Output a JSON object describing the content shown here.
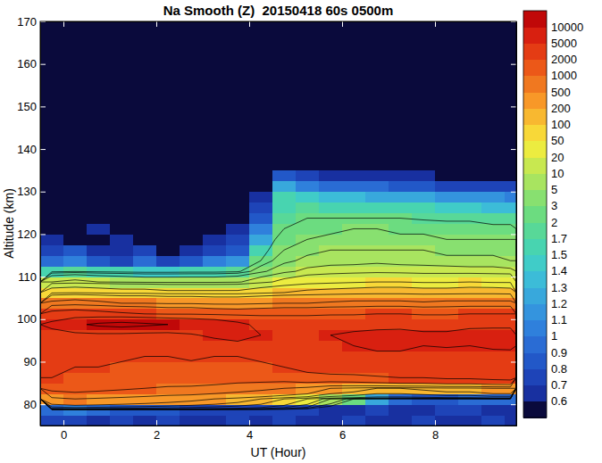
{
  "chart_data": {
    "type": "heatmap",
    "title": "Na Smooth (Z)  20150418 60s 0500m",
    "x_label": "UT (Hour)",
    "y_label": "Altitude (km)",
    "xlim": [
      -0.5,
      9.75
    ],
    "ylim": [
      75,
      170
    ],
    "xticks": [
      0,
      2,
      4,
      6,
      8
    ],
    "yticks": [
      80,
      90,
      100,
      110,
      120,
      130,
      140,
      150,
      160,
      170
    ],
    "x_edges": [
      -0.5,
      0,
      0.5,
      1,
      1.5,
      2,
      2.5,
      3,
      3.5,
      4,
      4.5,
      5,
      5.5,
      6,
      6.5,
      7,
      7.5,
      8,
      8.5,
      9,
      9.5,
      9.75
    ],
    "y_edges": [
      75,
      77.5,
      80,
      82.5,
      85,
      87.5,
      90,
      92.5,
      95,
      97.5,
      100,
      102.5,
      105,
      107.5,
      110,
      112.5,
      115,
      117.5,
      120,
      122.5,
      125,
      127.5,
      130,
      132.5,
      135,
      142.5,
      150,
      160,
      170
    ],
    "z": [
      [
        0.7,
        0.7,
        0.6,
        0.7,
        0.6,
        0.7,
        0.6,
        0.6,
        0.7,
        0.6,
        0.7,
        0.6,
        0.6,
        0.7,
        0.6,
        0.6,
        0.7,
        0.6,
        0.6,
        0.7,
        0.6
      ],
      [
        0.9,
        1,
        0.9,
        0.8,
        0.8,
        0.8,
        0.7,
        0.7,
        0.7,
        0.7,
        0.7,
        0.7,
        0.6,
        0.6,
        0.7,
        0.6,
        0.6,
        0.7,
        0.7,
        0.6,
        0.6
      ],
      [
        400,
        500,
        450,
        400,
        350,
        300,
        250,
        200,
        150,
        100,
        50,
        20,
        5,
        2,
        1.2,
        0.9,
        0.8,
        0.8,
        0.9,
        0.9,
        0.9
      ],
      [
        1200,
        1300,
        1200,
        1100,
        1000,
        900,
        900,
        800,
        700,
        600,
        500,
        400,
        200,
        150,
        100,
        100,
        120,
        150,
        150,
        200,
        200
      ],
      [
        2000,
        1800,
        1700,
        1600,
        1500,
        1500,
        1400,
        1400,
        1300,
        1300,
        1300,
        1500,
        1500,
        1600,
        1800,
        2000,
        2000,
        2200,
        2200,
        2400,
        2500
      ],
      [
        2200,
        2000,
        2000,
        1800,
        1800,
        1700,
        1700,
        1600,
        1600,
        1800,
        2000,
        2500,
        3000,
        3000,
        3200,
        3500,
        3500,
        3500,
        3000,
        3200,
        3500
      ],
      [
        2500,
        2600,
        2400,
        2200,
        2000,
        2000,
        2200,
        2000,
        2000,
        2200,
        2500,
        3000,
        3500,
        4000,
        4500,
        4500,
        4000,
        4000,
        3800,
        4000,
        4200
      ],
      [
        2800,
        3000,
        3000,
        2800,
        2600,
        2600,
        2500,
        2600,
        2800,
        3000,
        3500,
        4000,
        4500,
        5000,
        5500,
        5500,
        5000,
        5200,
        5000,
        5500,
        5500
      ],
      [
        3500,
        3800,
        4000,
        3800,
        3500,
        3500,
        4500,
        6000,
        8000,
        5000,
        4500,
        4500,
        5000,
        5500,
        6000,
        6000,
        5500,
        5500,
        5800,
        6000,
        6000
      ],
      [
        6000,
        9000,
        11000,
        12000,
        11000,
        10000,
        9000,
        8000,
        6000,
        4000,
        3500,
        3500,
        3800,
        4000,
        4000,
        4200,
        4000,
        4000,
        4500,
        4500,
        4500
      ],
      [
        2500,
        2800,
        2500,
        2200,
        2000,
        1800,
        1800,
        1600,
        1500,
        1600,
        1700,
        1700,
        1800,
        1800,
        2000,
        2000,
        1800,
        1800,
        2000,
        2000,
        2000
      ],
      [
        600,
        700,
        600,
        500,
        500,
        450,
        450,
        400,
        400,
        450,
        500,
        500,
        550,
        600,
        600,
        600,
        550,
        600,
        600,
        600,
        600
      ],
      [
        80,
        90,
        80,
        70,
        70,
        60,
        60,
        60,
        60,
        80,
        100,
        120,
        130,
        140,
        150,
        150,
        140,
        140,
        150,
        150,
        140
      ],
      [
        10,
        12,
        10,
        9,
        8,
        8,
        8,
        8,
        9,
        15,
        25,
        35,
        40,
        45,
        50,
        50,
        45,
        45,
        50,
        45,
        45
      ],
      [
        1.6,
        1.8,
        1.6,
        1.5,
        1.4,
        1.4,
        1.5,
        1.5,
        1.7,
        4,
        8,
        12,
        14,
        15,
        16,
        15,
        14,
        14,
        13,
        13,
        12
      ],
      [
        0.9,
        1,
        0.8,
        0.7,
        0.9,
        0.7,
        0.8,
        1,
        1.1,
        2,
        4,
        6,
        7,
        7,
        8,
        7,
        7,
        6,
        6,
        6,
        5
      ],
      [
        0.7,
        0.8,
        0.6,
        0.6,
        0.7,
        0.5,
        0.6,
        0.7,
        0.8,
        1.5,
        3,
        4,
        5,
        5,
        5,
        5,
        5,
        4,
        4,
        4,
        4
      ],
      [
        0.6,
        0.5,
        0.5,
        0.6,
        0.5,
        0.5,
        0.5,
        0.6,
        0.7,
        1.2,
        2.5,
        3,
        3.5,
        3.5,
        4,
        3.5,
        3.5,
        3,
        3,
        3,
        3
      ],
      [
        0.5,
        0.5,
        0.6,
        0.4,
        0.5,
        0.4,
        0.5,
        0.5,
        0.6,
        1,
        2,
        2.5,
        2.5,
        3,
        3,
        2.5,
        2.5,
        2.5,
        2.5,
        2.2,
        2.2
      ],
      [
        0.5,
        0.4,
        0.5,
        0.4,
        0.4,
        0.5,
        0.4,
        0.5,
        0.5,
        0.8,
        1.8,
        2,
        2,
        2,
        2,
        2,
        1.9,
        1.8,
        1.8,
        1.7,
        1.7
      ],
      [
        0.4,
        0.5,
        0.4,
        0.4,
        0.5,
        0.4,
        0.4,
        0.4,
        0.5,
        0.7,
        1.6,
        1.7,
        1.6,
        1.6,
        1.5,
        1.5,
        1.5,
        1.4,
        1.4,
        1.3,
        1.3
      ],
      [
        0.4,
        0.4,
        0.5,
        0.4,
        0.4,
        0.4,
        0.4,
        0.5,
        0.4,
        0.6,
        1.5,
        1.4,
        1.3,
        1.3,
        1.2,
        1.2,
        1.2,
        1.1,
        1.1,
        1.1,
        1
      ],
      [
        0.4,
        0.4,
        0.4,
        0.5,
        0.4,
        0.4,
        0.4,
        0.4,
        0.4,
        0.5,
        1.2,
        1,
        0.9,
        0.9,
        0.9,
        0.8,
        0.8,
        0.7,
        0.7,
        0.7,
        0.7
      ],
      [
        0.4,
        0.5,
        0.4,
        0.4,
        0.4,
        0.4,
        0.5,
        0.4,
        0.4,
        0.5,
        0.8,
        0.7,
        0.6,
        0.6,
        0.6,
        0.6,
        0.6,
        0.5,
        0.5,
        0.5,
        0.5
      ],
      [
        0.4,
        0.4,
        0.4,
        0.4,
        0.4,
        0.4,
        0.4,
        0.4,
        0.4,
        0.4,
        0.5,
        0.5,
        0.5,
        0.4,
        0.4,
        0.4,
        0.4,
        0.4,
        0.4,
        0.4,
        0.4
      ],
      [
        0.4,
        0.4,
        0.4,
        0.4,
        0.5,
        0.4,
        0.4,
        0.4,
        0.4,
        0.4,
        0.4,
        0.4,
        0.4,
        0.4,
        0.4,
        0.5,
        0.4,
        0.4,
        0.4,
        0.4,
        0.4
      ],
      [
        0.4,
        0.4,
        0.4,
        0.4,
        0.4,
        0.4,
        0.4,
        0.4,
        0.4,
        0.4,
        0.4,
        0.4,
        0.4,
        0.4,
        0.4,
        0.4,
        0.4,
        0.4,
        0.4,
        0.4,
        0.4
      ],
      [
        0.4,
        0.4,
        0.4,
        0.4,
        0.4,
        0.4,
        0.4,
        0.4,
        0.4,
        0.4,
        0.4,
        0.4,
        0.4,
        0.4,
        0.4,
        0.4,
        0.4,
        0.4,
        0.4,
        0.4,
        0.4
      ]
    ],
    "colorbar": {
      "levels": [
        0.6,
        0.7,
        0.8,
        0.9,
        1,
        1.1,
        1.2,
        1.3,
        1.4,
        1.5,
        1.7,
        2,
        3,
        5,
        10,
        20,
        50,
        100,
        200,
        500,
        1000,
        2000,
        5000,
        10000
      ],
      "colors": [
        "#0a0a3c",
        "#1830a0",
        "#1e44b8",
        "#2258c8",
        "#2a6cd4",
        "#2f80dc",
        "#3494de",
        "#38a8dc",
        "#3cbcd8",
        "#40ccc8",
        "#48d4b0",
        "#58d898",
        "#6cdc80",
        "#88e070",
        "#a8e460",
        "#c8e850",
        "#ecec40",
        "#f8d838",
        "#f8b830",
        "#f89828",
        "#f07820",
        "#ec5818",
        "#e43c14",
        "#d82010",
        "#c00808"
      ]
    }
  }
}
